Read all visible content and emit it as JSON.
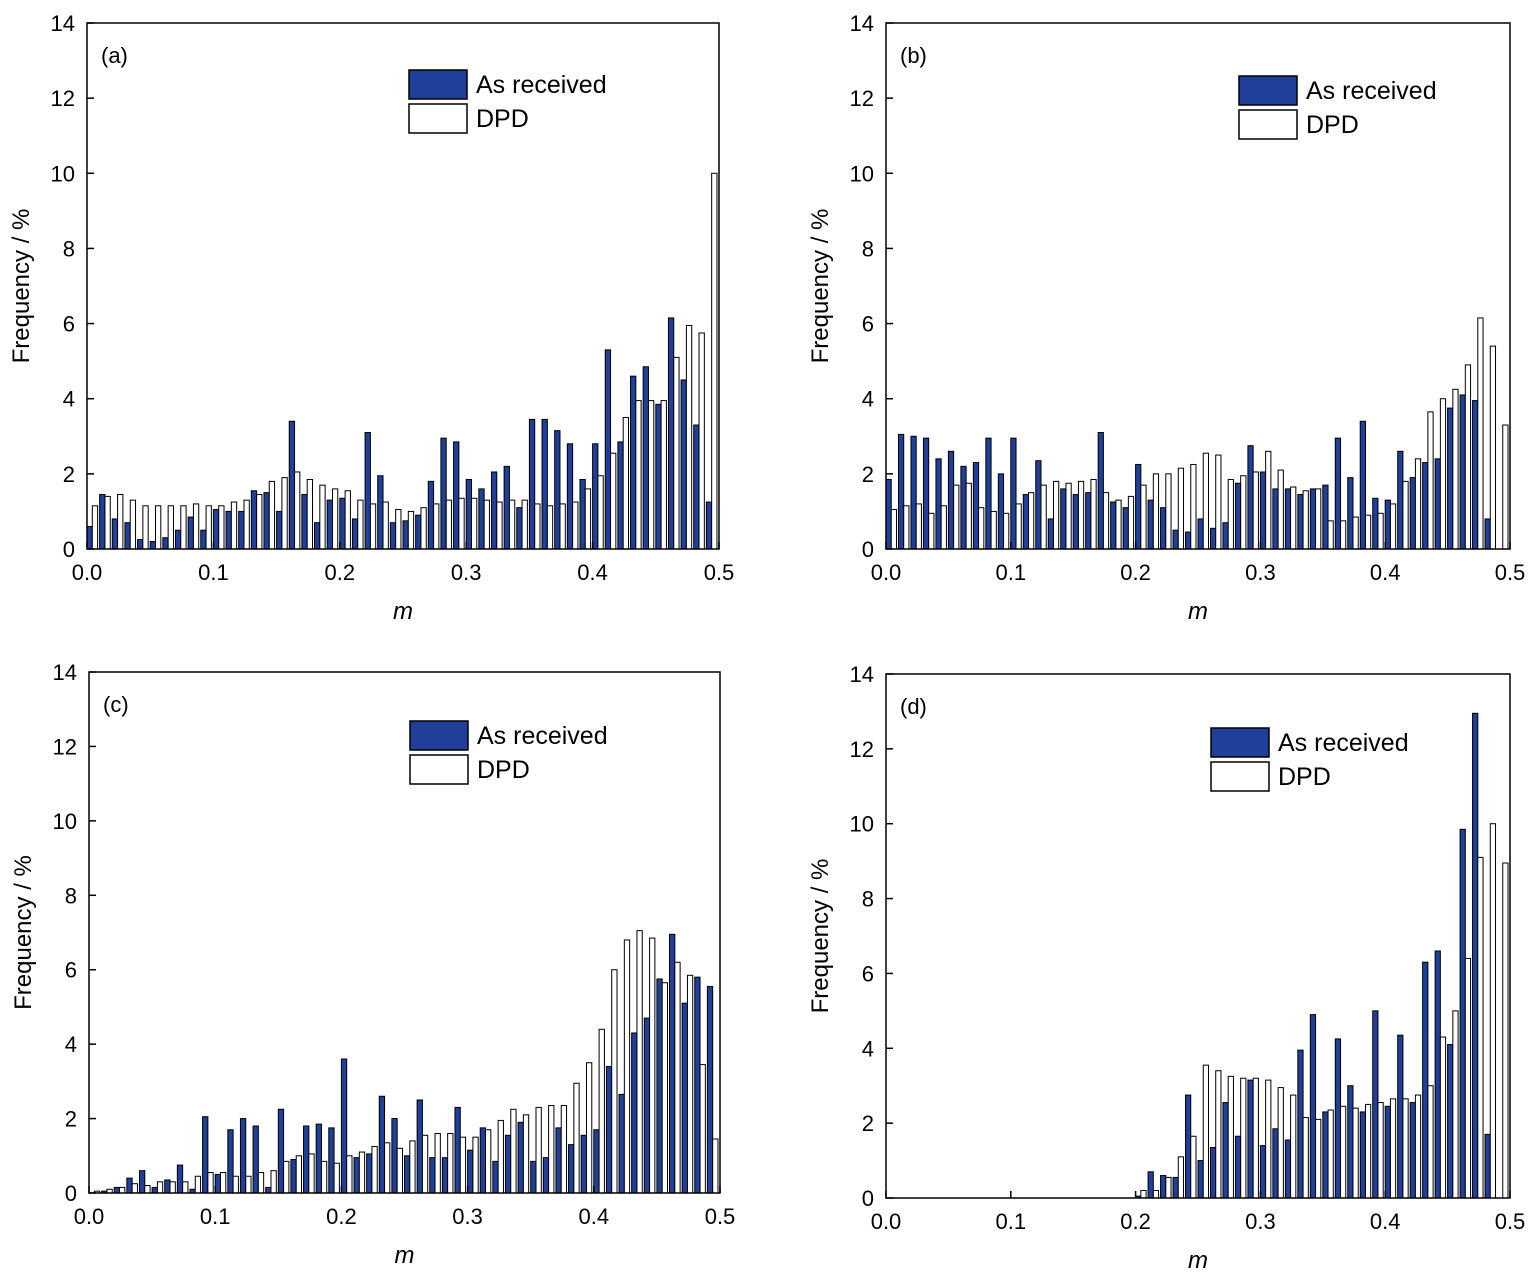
{
  "colors": {
    "as_received": "#1f3f9a",
    "dpd": "#ffffff",
    "axis": "#000000"
  },
  "chart_data": [
    {
      "panel": "(a)",
      "type": "bar",
      "xlabel": "m",
      "ylabel": "Frequency / %",
      "xlim": [
        0.0,
        0.5
      ],
      "ylim": [
        0,
        14
      ],
      "xticks": [
        "0.0",
        "0.1",
        "0.2",
        "0.3",
        "0.4",
        "0.5"
      ],
      "yticks": [
        "0",
        "2",
        "4",
        "6",
        "8",
        "10",
        "12",
        "14"
      ],
      "legend": [
        "As received",
        "DPD"
      ],
      "legend_position": "top-right",
      "series": [
        {
          "name": "As received",
          "values": [
            0.6,
            1.45,
            0.8,
            0.7,
            0.25,
            0.2,
            0.3,
            0.5,
            0.85,
            0.5,
            1.05,
            1.0,
            1.0,
            1.55,
            1.5,
            1.0,
            3.4,
            1.45,
            0.7,
            1.3,
            1.35,
            0.8,
            3.1,
            1.95,
            0.7,
            0.75,
            0.9,
            1.8,
            2.95,
            2.85,
            1.85,
            1.6,
            2.05,
            2.2,
            1.1,
            3.45,
            3.45,
            3.15,
            2.8,
            1.85,
            2.8,
            5.3,
            2.85,
            4.6,
            4.85,
            3.85,
            6.15,
            4.5,
            3.3,
            1.25
          ]
        },
        {
          "name": "DPD",
          "values": [
            1.15,
            1.4,
            1.45,
            1.3,
            1.15,
            1.15,
            1.15,
            1.15,
            1.2,
            1.15,
            1.15,
            1.25,
            1.3,
            1.45,
            1.8,
            1.9,
            2.05,
            1.85,
            1.7,
            1.6,
            1.55,
            1.3,
            1.2,
            1.25,
            1.05,
            1.0,
            1.1,
            1.2,
            1.3,
            1.35,
            1.35,
            1.3,
            1.25,
            1.3,
            1.3,
            1.2,
            1.15,
            1.2,
            1.25,
            1.6,
            1.95,
            2.55,
            3.5,
            3.95,
            3.95,
            3.95,
            5.1,
            5.95,
            5.75,
            10.0
          ]
        }
      ]
    },
    {
      "panel": "(b)",
      "type": "bar",
      "xlabel": "m",
      "ylabel": "Frequency / %",
      "xlim": [
        0.0,
        0.5
      ],
      "ylim": [
        0,
        14
      ],
      "xticks": [
        "0.0",
        "0.1",
        "0.2",
        "0.3",
        "0.4",
        "0.5"
      ],
      "yticks": [
        "0",
        "2",
        "4",
        "6",
        "8",
        "10",
        "12",
        "14"
      ],
      "legend": [
        "As received",
        "DPD"
      ],
      "legend_position": "top-right",
      "series": [
        {
          "name": "As received",
          "values": [
            1.85,
            3.05,
            3.0,
            2.95,
            2.4,
            2.6,
            2.2,
            2.3,
            2.95,
            2.0,
            2.95,
            1.45,
            2.35,
            0.8,
            1.6,
            1.45,
            1.5,
            3.1,
            1.25,
            1.1,
            2.25,
            1.3,
            1.1,
            0.5,
            0.45,
            0.8,
            0.55,
            0.7,
            1.75,
            2.75,
            2.05,
            1.6,
            1.6,
            1.45,
            1.6,
            1.7,
            2.95,
            1.9,
            3.4,
            1.35,
            1.3,
            2.6,
            1.9,
            2.3,
            2.4,
            3.75,
            4.1,
            3.95,
            0.8,
            0.0
          ]
        },
        {
          "name": "DPD",
          "values": [
            1.05,
            1.15,
            1.2,
            0.95,
            1.15,
            1.7,
            1.75,
            1.1,
            1.0,
            0.95,
            1.2,
            1.5,
            1.7,
            1.8,
            1.75,
            1.8,
            1.85,
            1.5,
            1.3,
            1.4,
            1.7,
            2.0,
            2.0,
            2.15,
            2.25,
            2.55,
            2.5,
            1.85,
            1.95,
            2.05,
            2.6,
            2.1,
            1.65,
            1.55,
            1.6,
            0.75,
            0.75,
            0.85,
            0.9,
            0.95,
            1.2,
            1.8,
            2.4,
            3.65,
            4.0,
            4.25,
            4.9,
            6.15,
            5.4,
            3.3
          ]
        }
      ]
    },
    {
      "panel": "(c)",
      "type": "bar",
      "xlabel": "m",
      "ylabel": "Frequency / %",
      "xlim": [
        0.0,
        0.5
      ],
      "ylim": [
        0,
        14
      ],
      "xticks": [
        "0.0",
        "0.1",
        "0.2",
        "0.3",
        "0.4",
        "0.5"
      ],
      "yticks": [
        "0",
        "2",
        "4",
        "6",
        "8",
        "10",
        "12",
        "14"
      ],
      "legend": [
        "As received",
        "DPD"
      ],
      "legend_position": "top-right",
      "series": [
        {
          "name": "As received",
          "values": [
            0.0,
            0.05,
            0.15,
            0.4,
            0.6,
            0.15,
            0.35,
            0.75,
            0.1,
            2.05,
            0.5,
            1.7,
            2.0,
            1.8,
            0.15,
            2.25,
            0.9,
            1.8,
            1.85,
            1.75,
            3.6,
            0.95,
            1.05,
            2.6,
            2.0,
            1.0,
            2.5,
            0.95,
            0.95,
            2.3,
            1.15,
            1.75,
            0.85,
            1.55,
            1.9,
            0.85,
            0.95,
            1.75,
            1.3,
            1.55,
            1.7,
            3.4,
            2.65,
            4.3,
            4.7,
            5.75,
            6.95,
            5.1,
            5.8,
            5.55
          ]
        },
        {
          "name": "DPD",
          "values": [
            0.05,
            0.1,
            0.15,
            0.25,
            0.2,
            0.3,
            0.3,
            0.3,
            0.45,
            0.55,
            0.55,
            0.45,
            0.45,
            0.55,
            0.6,
            0.85,
            1.0,
            1.05,
            0.85,
            0.8,
            1.0,
            1.1,
            1.25,
            1.35,
            1.2,
            1.4,
            1.55,
            1.6,
            1.6,
            1.5,
            1.5,
            1.7,
            1.95,
            2.25,
            2.1,
            2.3,
            2.35,
            2.35,
            2.95,
            3.5,
            4.4,
            6.0,
            6.8,
            7.05,
            6.85,
            5.65,
            6.2,
            5.85,
            3.45,
            1.45
          ]
        }
      ]
    },
    {
      "panel": "(d)",
      "type": "bar",
      "xlabel": "m",
      "ylabel": "Frequency / %",
      "xlim": [
        0.0,
        0.5
      ],
      "ylim": [
        0,
        14
      ],
      "xticks": [
        "0.0",
        "0.1",
        "0.2",
        "0.3",
        "0.4",
        "0.5"
      ],
      "yticks": [
        "0",
        "2",
        "4",
        "6",
        "8",
        "10",
        "12",
        "14"
      ],
      "legend": [
        "As received",
        "DPD"
      ],
      "legend_position": "top-right",
      "series": [
        {
          "name": "As received",
          "values": [
            0,
            0,
            0,
            0,
            0,
            0,
            0,
            0,
            0,
            0,
            0,
            0,
            0,
            0,
            0,
            0,
            0,
            0,
            0,
            0,
            0.05,
            0.7,
            0.6,
            0.55,
            2.75,
            1.0,
            1.35,
            2.55,
            1.65,
            3.15,
            1.4,
            1.85,
            1.55,
            3.95,
            4.9,
            2.3,
            4.25,
            3.0,
            2.3,
            5.0,
            2.45,
            4.35,
            2.55,
            6.3,
            6.6,
            4.1,
            9.85,
            12.95,
            1.7,
            0
          ]
        },
        {
          "name": "DPD",
          "values": [
            0,
            0,
            0,
            0,
            0,
            0,
            0,
            0,
            0,
            0,
            0,
            0,
            0,
            0,
            0,
            0,
            0,
            0,
            0,
            0,
            0.2,
            0.2,
            0.55,
            1.1,
            1.65,
            3.55,
            3.4,
            3.25,
            3.2,
            3.2,
            3.15,
            2.95,
            2.75,
            2.15,
            2.1,
            2.35,
            2.45,
            2.4,
            2.5,
            2.55,
            2.65,
            2.65,
            2.75,
            3.0,
            4.3,
            5.0,
            6.4,
            9.1,
            10.0,
            8.95
          ]
        }
      ]
    }
  ]
}
